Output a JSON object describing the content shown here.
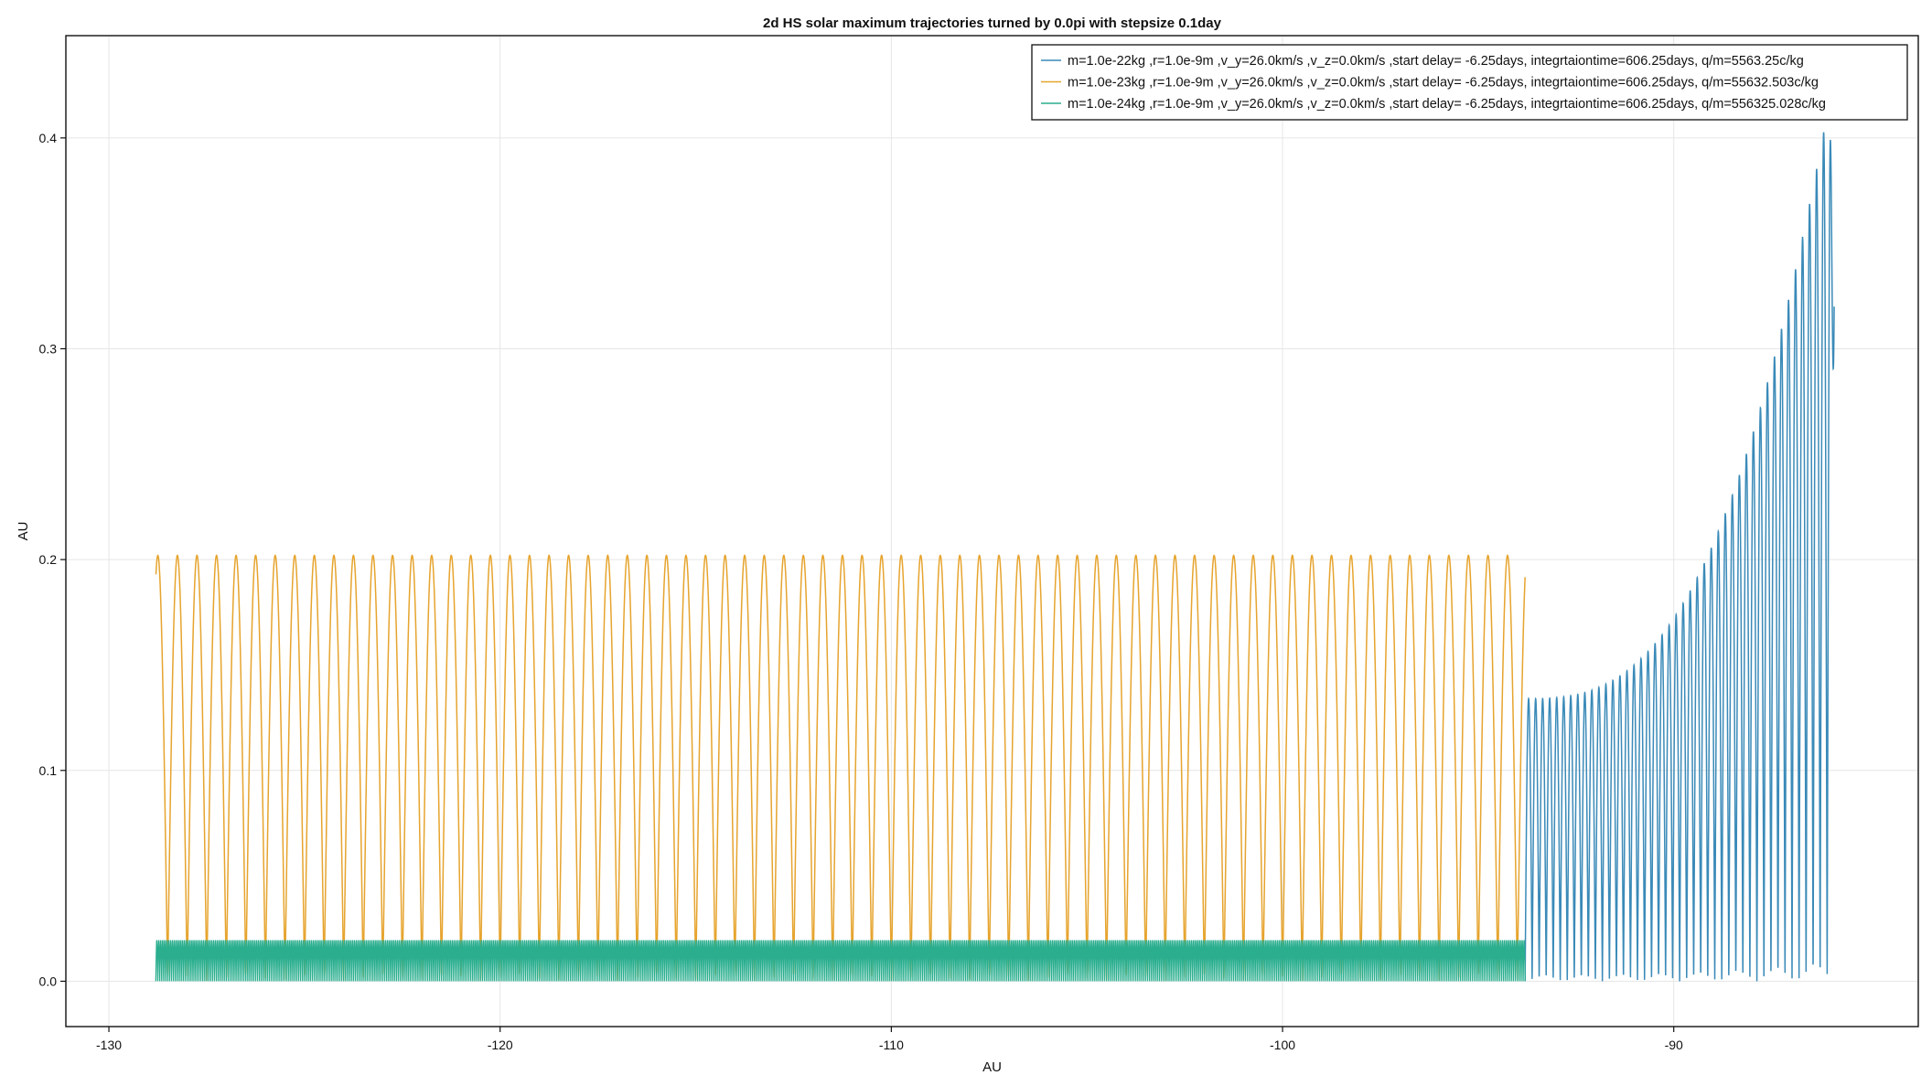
{
  "chart_data": {
    "type": "line",
    "title": "2d HS solar maximum trajectories turned by 0.0pi with stepsize 0.1day",
    "xlabel": "AU",
    "ylabel": "AU",
    "xlim": [
      -131.1,
      -83.75
    ],
    "ylim": [
      -0.0215,
      0.4485
    ],
    "xticks": [
      -130,
      -120,
      -110,
      -100,
      -90
    ],
    "yticks": [
      0.0,
      0.1,
      0.2,
      0.3,
      0.4
    ],
    "xtick_labels": [
      "-130",
      "-120",
      "-110",
      "-100",
      "-90"
    ],
    "ytick_labels": [
      "0.0",
      "0.1",
      "0.2",
      "0.3",
      "0.4"
    ],
    "grid": true,
    "legend_position": "top-right",
    "series": [
      {
        "name": "m=1.0e-22kg ,r=1.0e-9m ,v_y=26.0km/s ,v_z=0.0km/s ,start delay= -6.25days, integrtaiontime=606.25days, q/m=5563.25c/kg",
        "color": "#3a8ab8",
        "x_start": -93.8,
        "x_end": -85.9,
        "y_min": 0.0,
        "y_max_start": 0.134,
        "y_max_end": 0.43,
        "oscillations": 44,
        "y_final": 0.32
      },
      {
        "name": "m=1.0e-23kg ,r=1.0e-9m ,v_y=26.0km/s ,v_z=0.0km/s ,start delay= -6.25days, integrtaiontime=606.25days, q/m=55632.503c/kg",
        "color": "#e6a42e",
        "x_start": -128.8,
        "x_end": -93.8,
        "y_min": 0.0,
        "y_max": 0.202,
        "y_first": 0.193,
        "oscillations": 70
      },
      {
        "name": "m=1.0e-24kg ,r=1.0e-9m ,v_y=26.0km/s ,v_z=0.0km/s ,start delay= -6.25days, integrtaiontime=606.25days, q/m=556325.028c/kg",
        "color": "#2aae8e",
        "x_start": -128.8,
        "x_end": -93.8,
        "y_min": 0.0,
        "y_max": 0.0195,
        "oscillations": 700
      }
    ]
  }
}
